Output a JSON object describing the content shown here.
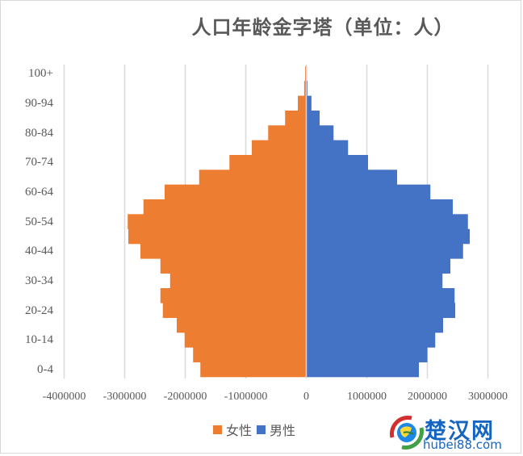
{
  "chart_data": {
    "type": "bar",
    "orientation": "horizontal",
    "stacked": "butterfly",
    "title": "人口年龄金字塔（单位：人）",
    "xlabel": "",
    "ylabel": "",
    "xlim": [
      -4000000,
      3000000
    ],
    "x_ticks": [
      -4000000,
      -3000000,
      -2000000,
      -1000000,
      0,
      1000000,
      2000000,
      3000000
    ],
    "x_tick_labels": [
      "-4000000",
      "-3000000",
      "-2000000",
      "-1000000",
      "0",
      "1000000",
      "2000000",
      "3000000"
    ],
    "grid": "vertical",
    "legend_position": "bottom",
    "categories": [
      "0-4",
      "5-9",
      "10-14",
      "15-19",
      "20-24",
      "25-29",
      "30-34",
      "35-39",
      "40-44",
      "45-49",
      "50-54",
      "55-59",
      "60-64",
      "65-69",
      "70-74",
      "75-79",
      "80-84",
      "85-89",
      "90-94",
      "95-99",
      "100+"
    ],
    "visible_category_labels": [
      "0-4",
      "10-14",
      "20-24",
      "30-34",
      "40-44",
      "50-54",
      "60-64",
      "70-74",
      "80-84",
      "90-94",
      "100+"
    ],
    "series": [
      {
        "name": "女性",
        "color": "#ed7d31",
        "values": [
          -1750000,
          -1870000,
          -2010000,
          -2140000,
          -2370000,
          -2410000,
          -2250000,
          -2410000,
          -2740000,
          -2940000,
          -2950000,
          -2690000,
          -2340000,
          -1770000,
          -1270000,
          -900000,
          -630000,
          -350000,
          -140000,
          -35000,
          -20000
        ]
      },
      {
        "name": "男性",
        "color": "#4472c4",
        "values": [
          1860000,
          2000000,
          2130000,
          2260000,
          2460000,
          2450000,
          2250000,
          2380000,
          2590000,
          2700000,
          2670000,
          2420000,
          2050000,
          1500000,
          1020000,
          690000,
          450000,
          220000,
          85000,
          20000,
          5000
        ]
      }
    ]
  },
  "legend": {
    "items": [
      {
        "label": "女性",
        "color": "#ed7d31"
      },
      {
        "label": "男性",
        "color": "#4472c4"
      }
    ]
  },
  "watermark": {
    "brand": "楚汉网",
    "url": "hubei88.com"
  }
}
